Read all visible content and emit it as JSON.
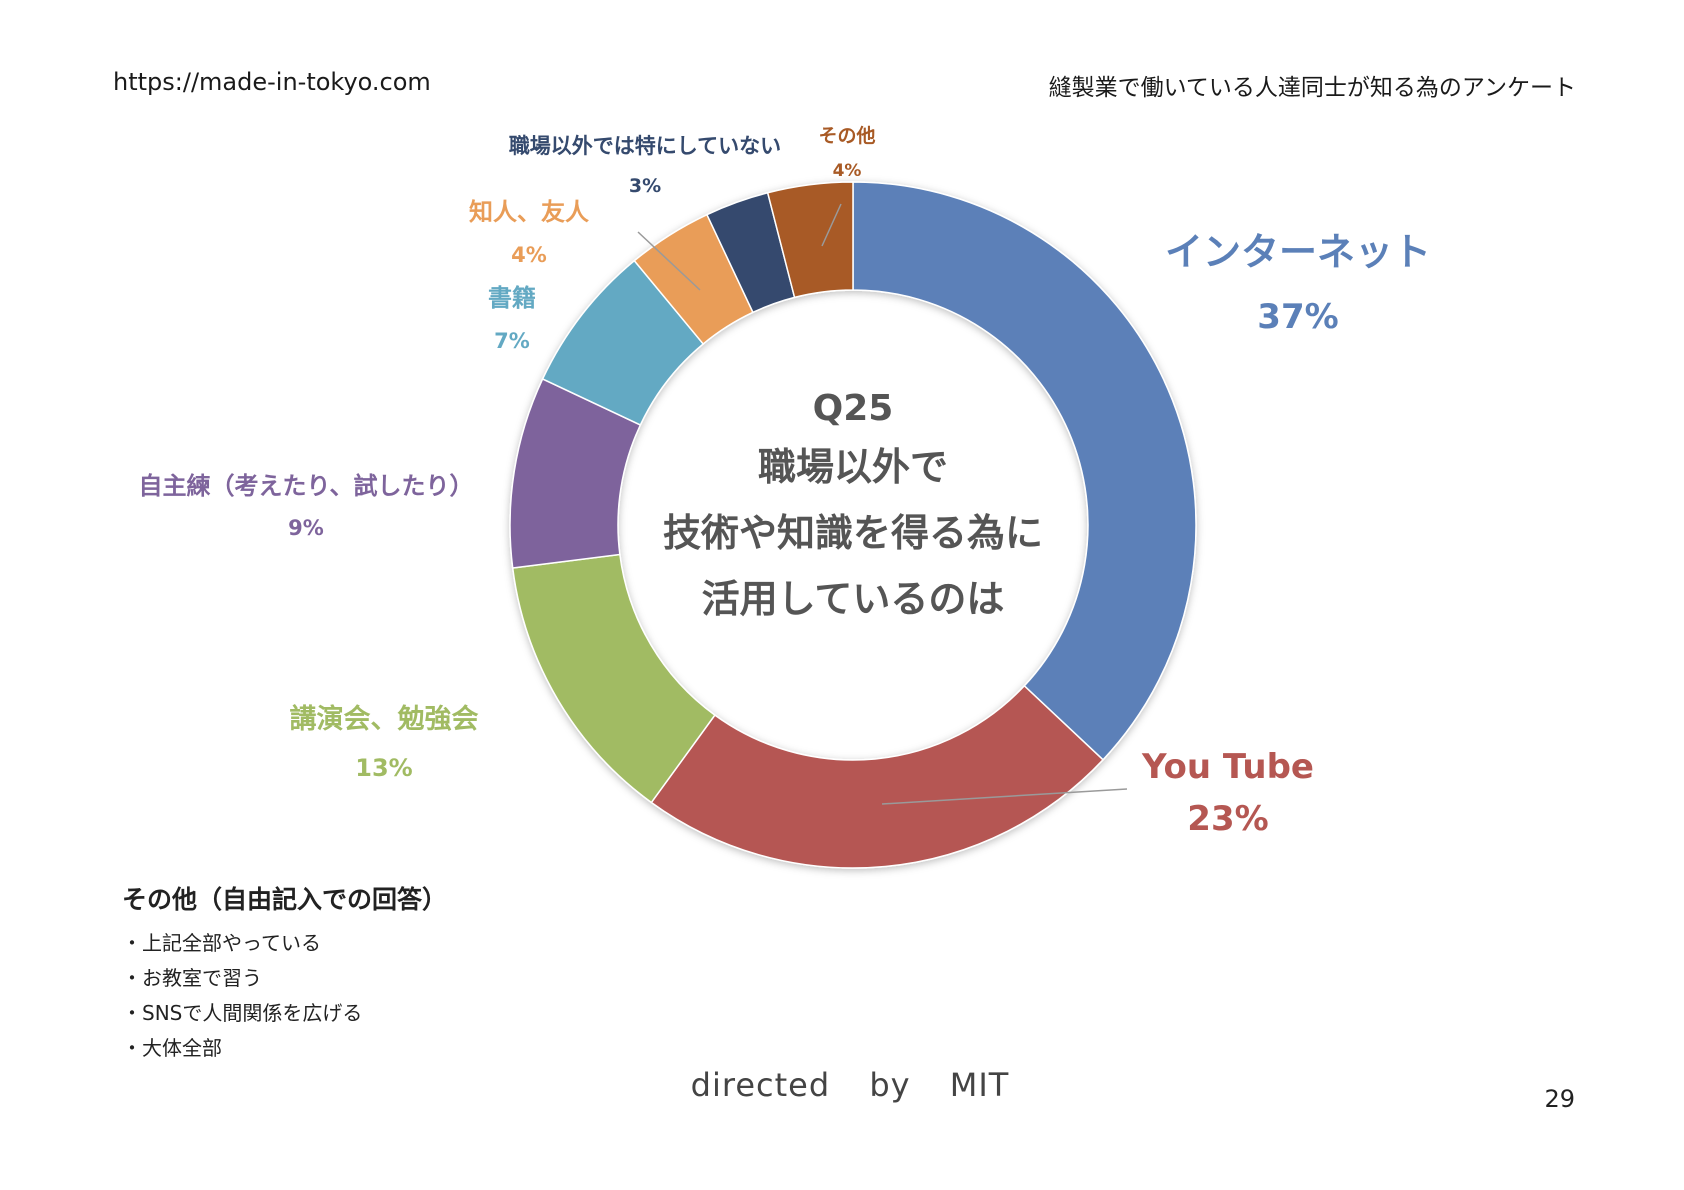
{
  "header": {
    "url": "https://made-in-tokyo.com",
    "title": "縫製業で働いている人達同士が知る為のアンケート"
  },
  "chart_data": {
    "type": "pie",
    "style": "donut",
    "center_text": [
      "Q25",
      "職場以外で",
      "技術や知識を得る為に",
      "活用しているのは"
    ],
    "slices": [
      {
        "label": "インターネット",
        "value": 37,
        "value_label": "37%",
        "color": "#5b80b8"
      },
      {
        "label": "You Tube",
        "value": 23,
        "value_label": "23%",
        "color": "#b55752"
      },
      {
        "label": "講演会、勉強会",
        "value": 13,
        "value_label": "13%",
        "color": "#a1bb63"
      },
      {
        "label": "自主練（考えたり、試したり）",
        "value": 9,
        "value_label": "9%",
        "color": "#7e649c"
      },
      {
        "label": "書籍",
        "value": 7,
        "value_label": "7%",
        "color": "#63a9c3"
      },
      {
        "label": "知人、友人",
        "value": 4,
        "value_label": "4%",
        "color": "#e99d58"
      },
      {
        "label": "職場以外では特にしていない",
        "value": 3,
        "value_label": "3%",
        "color": "#354a6e"
      },
      {
        "label": "その他",
        "value": 4,
        "value_label": "4%",
        "color": "#a85a25"
      }
    ]
  },
  "notes": {
    "title": "その他（自由記入での回答）",
    "items": [
      "・上記全部やっている",
      "・お教室で習う",
      "・SNSで人間関係を広げる",
      "・大体全部"
    ]
  },
  "footer": {
    "text": "directed by MIT"
  },
  "page_number": "29"
}
